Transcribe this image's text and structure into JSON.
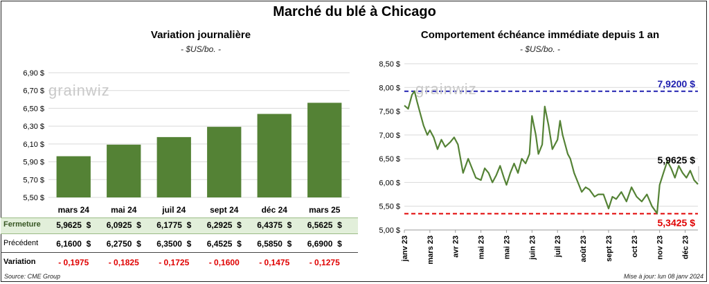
{
  "title": "Marché du blé à Chicago",
  "left_panel": {
    "subtitle": "Variation journalière",
    "unit": "- $US/bo. -",
    "watermark": "grainwiz"
  },
  "right_panel": {
    "subtitle": "Comportement  échéance immédiate depuis 1 an",
    "unit": "- $US/bo. -",
    "watermark": "grainwiz"
  },
  "table": {
    "rows": [
      {
        "label": "Fermeture",
        "values": [
          "5,9625  $",
          "6,0925  $",
          "6,1775  $",
          "6,2925  $",
          "6,4375  $",
          "6,5625  $"
        ]
      },
      {
        "label": "Précédent",
        "values": [
          "6,1600  $",
          "6,2750  $",
          "6,3500  $",
          "6,4525  $",
          "6,5850  $",
          "6,6900  $"
        ]
      },
      {
        "label": "Variation",
        "values": [
          "- 0,1975",
          "- 0,1825",
          "- 0,1725",
          "- 0,1600",
          "- 0,1475",
          "- 0,1275"
        ]
      }
    ]
  },
  "footer": {
    "source": "Source: CME Group",
    "updated": "Mise à jour: lun 08 janv 2024"
  },
  "colors": {
    "bar": "#548235",
    "line": "#548235",
    "high": "#2020b0",
    "low": "#e00000",
    "highlight": "#e2efda"
  },
  "chart_data": [
    {
      "type": "bar",
      "title": "Variation journalière",
      "ylabel": "- $US/bo. -",
      "categories": [
        "mars 24",
        "mai 24",
        "juil 24",
        "sept 24",
        "déc 24",
        "mars 25"
      ],
      "values": [
        5.9625,
        6.0925,
        6.1775,
        6.2925,
        6.4375,
        6.5625
      ],
      "ylim": [
        5.5,
        6.9
      ],
      "yticks": [
        "6,90 $",
        "6,70 $",
        "6,50 $",
        "6,30 $",
        "6,10 $",
        "5,90 $",
        "5,70 $",
        "5,50 $"
      ],
      "ytick_values": [
        6.9,
        6.7,
        6.5,
        6.3,
        6.1,
        5.9,
        5.7,
        5.5
      ]
    },
    {
      "type": "line",
      "title": "Comportement  échéance immédiate depuis 1 an",
      "ylabel": "- $US/bo. -",
      "ylim": [
        5.0,
        8.5
      ],
      "yticks": [
        "8,50 $",
        "8,00 $",
        "7,50 $",
        "7,00 $",
        "6,50 $",
        "6,00 $",
        "5,50 $",
        "5,00 $"
      ],
      "ytick_values": [
        8.5,
        8.0,
        7.5,
        7.0,
        6.5,
        6.0,
        5.5,
        5.0
      ],
      "xticks": [
        "janv 23",
        "mars 23",
        "avr 23",
        "mai 23",
        "mai 23",
        "juin 23",
        "juil 23",
        "août 23",
        "sept 23",
        "oct 23",
        "nov 23",
        "déc 23"
      ],
      "xtick_values": [
        0,
        2,
        4,
        6,
        8,
        10,
        12,
        14,
        16,
        18,
        20,
        22
      ],
      "x": [
        0,
        0.3,
        0.6,
        0.8,
        1.0,
        1.2,
        1.5,
        1.8,
        2.0,
        2.3,
        2.6,
        2.9,
        3.2,
        3.6,
        3.9,
        4.2,
        4.6,
        5.0,
        5.3,
        5.6,
        6.0,
        6.3,
        6.6,
        6.9,
        7.2,
        7.5,
        7.8,
        8.0,
        8.3,
        8.6,
        8.9,
        9.2,
        9.5,
        9.8,
        10.0,
        10.3,
        10.5,
        10.8,
        11.0,
        11.3,
        11.6,
        12.0,
        12.2,
        12.4,
        12.6,
        12.8,
        13.0,
        13.3,
        13.6,
        13.9,
        14.2,
        14.5,
        14.9,
        15.2,
        15.6,
        16.0,
        16.3,
        16.6,
        17.0,
        17.4,
        17.8,
        18.2,
        18.6,
        19.0,
        19.4,
        19.8,
        20.0,
        20.3,
        20.6,
        20.9,
        21.2,
        21.5,
        21.8,
        22.1,
        22.4,
        22.7,
        23.0
      ],
      "y": [
        7.62,
        7.55,
        7.85,
        7.92,
        7.7,
        7.5,
        7.2,
        7.0,
        7.1,
        6.95,
        6.7,
        6.9,
        6.75,
        6.85,
        6.95,
        6.8,
        6.2,
        6.5,
        6.3,
        6.1,
        6.05,
        6.3,
        6.2,
        6.0,
        6.15,
        6.35,
        6.1,
        5.95,
        6.2,
        6.4,
        6.2,
        6.5,
        6.4,
        6.6,
        7.4,
        7.0,
        6.6,
        6.8,
        7.6,
        7.2,
        6.7,
        6.9,
        7.3,
        7.0,
        6.8,
        6.6,
        6.5,
        6.2,
        6.0,
        5.8,
        5.9,
        5.85,
        5.7,
        5.75,
        5.75,
        5.45,
        5.7,
        5.65,
        5.8,
        5.6,
        5.9,
        5.7,
        5.6,
        5.75,
        5.5,
        5.35,
        5.95,
        6.2,
        6.45,
        6.3,
        6.1,
        6.35,
        6.2,
        6.1,
        6.25,
        6.05,
        5.9625
      ],
      "annotations": [
        {
          "label": "7,9200 $",
          "value": 7.92,
          "kind": "high"
        },
        {
          "label": "5,3425 $",
          "value": 5.3425,
          "kind": "low"
        },
        {
          "label": "5,9625 $",
          "value": 5.9625,
          "kind": "last"
        }
      ]
    }
  ]
}
